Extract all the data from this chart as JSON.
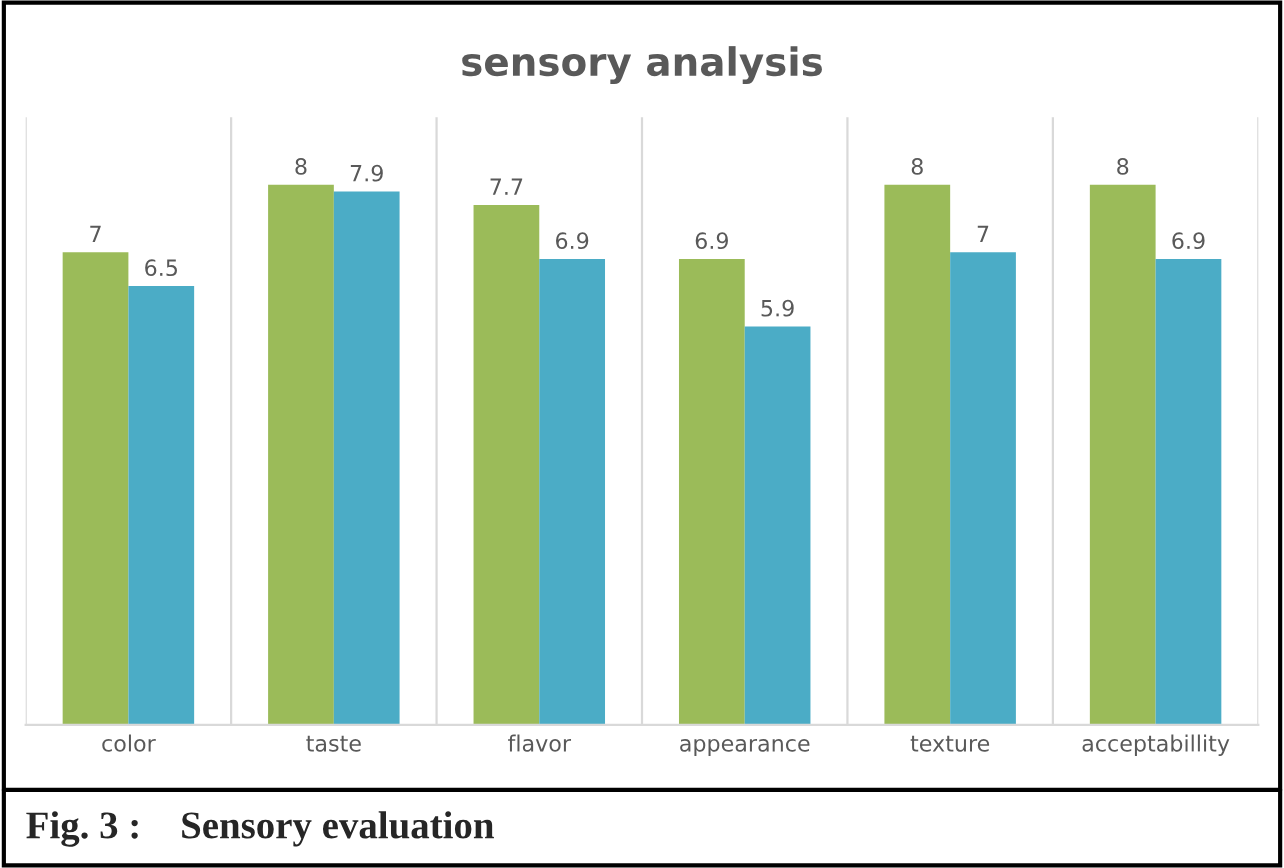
{
  "chart_data": {
    "type": "bar",
    "title": "sensory analysis",
    "categories": [
      "color",
      "taste",
      "flavor",
      "appearance",
      "texture",
      "acceptabillity"
    ],
    "series": [
      {
        "color": "#9bbb59",
        "values": [
          7,
          8,
          7.7,
          6.9,
          8,
          8
        ]
      },
      {
        "color": "#4bacc6",
        "values": [
          6.5,
          7.9,
          6.9,
          5.9,
          7,
          6.9
        ]
      }
    ],
    "ylim": [
      0,
      9
    ],
    "tick_labels": "x",
    "grid": "x",
    "data_labels": true,
    "annotations": [
      "Fig. 3 :    Sensory evaluation"
    ]
  }
}
